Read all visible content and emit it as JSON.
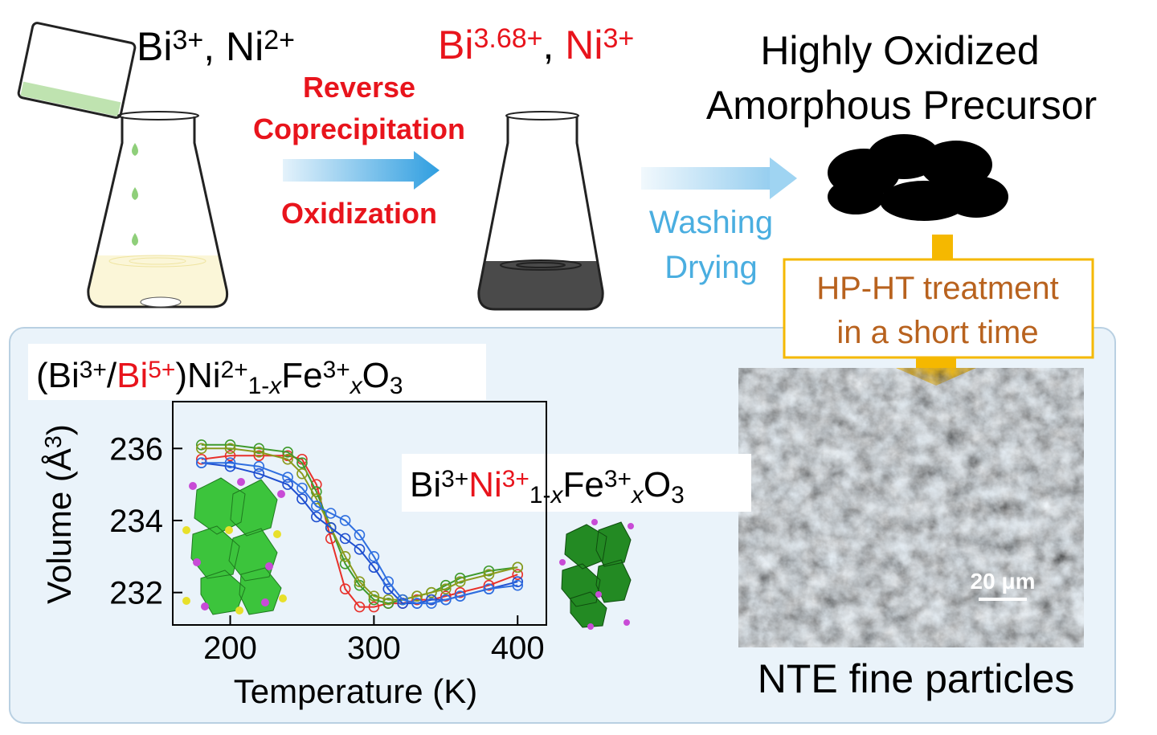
{
  "reactants": [
    {
      "text": "Bi"
    },
    {
      "text": "3+",
      "style": "sup"
    },
    {
      "text": ", Ni"
    },
    {
      "text": "2+",
      "style": "sup"
    }
  ],
  "intermediate": [
    {
      "text": "Bi",
      "color": "#e8141c"
    },
    {
      "text": "3.68+",
      "style": "sup",
      "color": "#e8141c"
    },
    {
      "text": ", "
    },
    {
      "text": "Ni",
      "color": "#e8141c"
    },
    {
      "text": "3+",
      "style": "sup",
      "color": "#e8141c"
    }
  ],
  "process": [
    "Reverse",
    "Coprecipitation",
    "Oxidization"
  ],
  "post_process": [
    "Washing",
    "Drying"
  ],
  "precursor": [
    "Highly Oxidized",
    "Amorphous Precursor"
  ],
  "treatment": [
    "HP-HT treatment",
    "in a short time"
  ],
  "product": "NTE fine particles",
  "scale_bar": "20 μm",
  "formula_low": [
    {
      "text": "(Bi"
    },
    {
      "text": "3+",
      "style": "sup"
    },
    {
      "text": "/"
    },
    {
      "text": "Bi",
      "color": "#e8141c"
    },
    {
      "text": "5+",
      "style": "sup",
      "color": "#e8141c"
    },
    {
      "text": ")Ni"
    },
    {
      "text": "2+",
      "style": "sup"
    },
    {
      "text": "1-",
      "style": "sub"
    },
    {
      "text": "x",
      "style": "sub",
      "italic": true
    },
    {
      "text": "Fe"
    },
    {
      "text": "3+",
      "style": "sup"
    },
    {
      "text": "x",
      "style": "sub",
      "italic": true
    },
    {
      "text": "O"
    },
    {
      "text": "3",
      "style": "sub"
    }
  ],
  "formula_high": [
    {
      "text": "Bi"
    },
    {
      "text": "3+",
      "style": "sup"
    },
    {
      "text": "Ni",
      "color": "#e8141c"
    },
    {
      "text": "3+",
      "style": "sup",
      "color": "#e8141c"
    },
    {
      "text": "1-",
      "style": "sub"
    },
    {
      "text": "x",
      "style": "sub",
      "italic": true
    },
    {
      "text": "Fe"
    },
    {
      "text": "3+",
      "style": "sup"
    },
    {
      "text": "x",
      "style": "sub",
      "italic": true
    },
    {
      "text": "O"
    },
    {
      "text": "3",
      "style": "sub"
    }
  ],
  "chart_data": {
    "type": "line",
    "x_label": "Temperature (K)",
    "y_label": [
      {
        "text": "Volume  (Å"
      },
      {
        "text": "3",
        "style": "sup"
      },
      {
        "text": ")"
      }
    ],
    "x": [
      180,
      200,
      220,
      240,
      250,
      260,
      270,
      280,
      290,
      300,
      310,
      320,
      330,
      340,
      350,
      360,
      380,
      400
    ],
    "series": [
      {
        "color": "#e8302a",
        "values": [
          235.7,
          235.8,
          235.8,
          235.8,
          235.7,
          235.0,
          233.5,
          232.1,
          231.6,
          231.6,
          231.7,
          231.7,
          231.8,
          231.8,
          231.9,
          232.0,
          232.2,
          232.5
        ]
      },
      {
        "color": "#3f9a2c",
        "values": [
          236.1,
          236.1,
          236.0,
          235.9,
          235.6,
          234.8,
          233.8,
          232.8,
          232.2,
          231.8,
          231.7,
          231.8,
          231.9,
          232.0,
          232.2,
          232.4,
          232.6,
          232.7
        ]
      },
      {
        "color": "#8a9a1c",
        "values": [
          236.0,
          236.0,
          235.9,
          235.7,
          235.3,
          234.6,
          233.8,
          233.0,
          232.3,
          231.9,
          231.8,
          231.8,
          231.9,
          232.0,
          232.1,
          232.3,
          232.5,
          232.7
        ]
      },
      {
        "color": "#1f4fd0",
        "values": [
          235.6,
          235.5,
          235.3,
          235.0,
          234.6,
          234.1,
          233.8,
          233.5,
          233.2,
          232.7,
          232.1,
          231.7,
          231.7,
          231.8,
          231.8,
          231.9,
          232.1,
          232.3
        ]
      },
      {
        "color": "#2f6fe0",
        "values": [
          235.6,
          235.6,
          235.5,
          235.2,
          234.9,
          234.4,
          234.2,
          234.0,
          233.6,
          233.0,
          232.3,
          231.8,
          231.7,
          231.7,
          231.8,
          231.9,
          232.1,
          232.2
        ]
      }
    ],
    "xlim": [
      160,
      420
    ],
    "xticks": [
      200,
      300,
      400
    ],
    "ylim": [
      231.1,
      237.3
    ],
    "yticks": [
      232,
      234,
      236
    ]
  }
}
